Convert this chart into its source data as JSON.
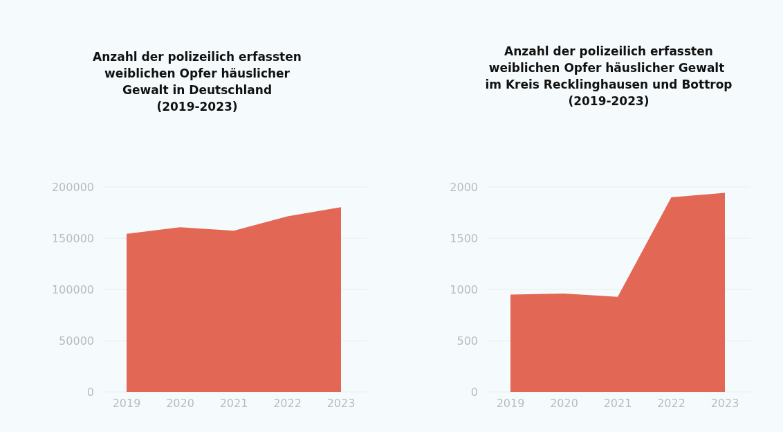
{
  "chart_data": [
    {
      "type": "area",
      "title": "Anzahl der polizeilich erfassten weiblichen Opfer häuslicher Gewalt in Deutschland (2019-2023)",
      "categories": [
        "2019",
        "2020",
        "2021",
        "2022",
        "2023"
      ],
      "series": [
        {
          "color": "#e36755",
          "values": [
            154300,
            160600,
            157200,
            171200,
            180200
          ]
        }
      ],
      "ylim": [
        0,
        200000
      ],
      "yticks": [
        0,
        50000,
        100000,
        150000,
        200000
      ],
      "grid": "y"
    },
    {
      "type": "area",
      "title": "Anzahl der polizeilich erfassten weiblichen Opfer häuslicher Gewalt  im Kreis Recklinghausen und Bottrop (2019-2023)",
      "categories": [
        "2019",
        "2020",
        "2021",
        "2022",
        "2023"
      ],
      "series": [
        {
          "color": "#e36755",
          "values": [
            950,
            960,
            928,
            1899,
            1942
          ]
        }
      ],
      "ylim": [
        0,
        2000
      ],
      "yticks": [
        0,
        500,
        1000,
        1500,
        2000
      ],
      "grid": "y"
    }
  ]
}
